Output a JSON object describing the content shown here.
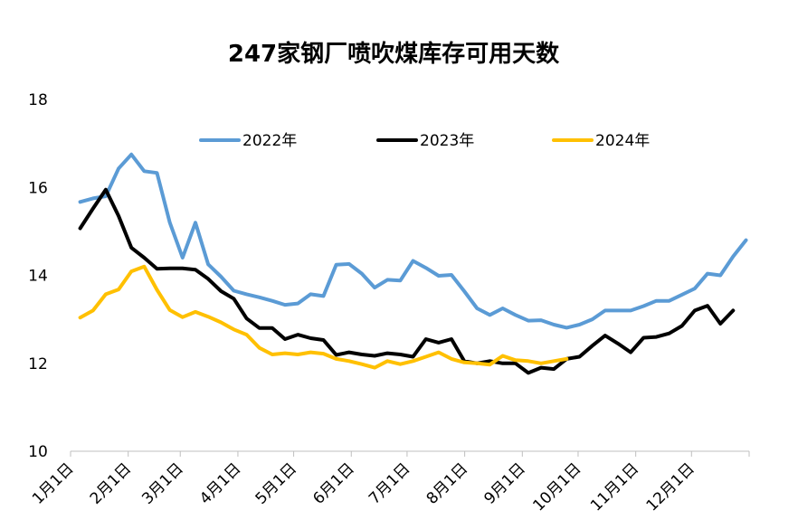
{
  "chart_data": {
    "type": "line",
    "title": "247家钢厂喷吹煤库存可用天数",
    "xlabel": "",
    "ylabel": "",
    "ylim": [
      10,
      18
    ],
    "yticks": [
      "10",
      "12",
      "14",
      "16",
      "18"
    ],
    "xticks": [
      "1月1日",
      "2月1日",
      "3月1日",
      "4月1日",
      "5月1日",
      "6月1日",
      "7月1日",
      "8月1日",
      "9月1日",
      "10月1日",
      "11月1日",
      "12月1日"
    ],
    "legend_position": "top",
    "grid": false,
    "series": [
      {
        "name": "2022年",
        "color": "#5B9BD5",
        "week_start": 1,
        "values": [
          15.67,
          15.75,
          15.8,
          16.43,
          16.75,
          16.37,
          16.33,
          15.2,
          14.4,
          15.2,
          14.25,
          13.97,
          13.65,
          13.57,
          13.5,
          13.42,
          13.33,
          13.36,
          13.57,
          13.53,
          14.24,
          14.26,
          14.04,
          13.72,
          13.9,
          13.88,
          14.33,
          14.17,
          13.99,
          14.01,
          13.64,
          13.25,
          13.1,
          13.25,
          13.1,
          12.97,
          12.98,
          12.88,
          12.81,
          12.88,
          13.0,
          13.2,
          13.2,
          13.2,
          13.3,
          13.42,
          13.42,
          13.56,
          13.7,
          14.04,
          14.0,
          14.43,
          14.8
        ]
      },
      {
        "name": "2023年",
        "color": "#000000",
        "week_start": 1,
        "values": [
          15.07,
          15.52,
          15.95,
          15.35,
          14.63,
          14.4,
          14.15,
          14.16,
          14.16,
          14.13,
          13.92,
          13.64,
          13.47,
          13.02,
          12.8,
          12.8,
          12.55,
          12.65,
          12.57,
          12.53,
          12.19,
          12.25,
          12.2,
          12.17,
          12.23,
          12.2,
          12.15,
          12.55,
          12.47,
          12.55,
          12.05,
          12.0,
          12.05,
          12.0,
          12.0,
          11.78,
          11.9,
          11.87,
          12.1,
          12.15,
          12.4,
          12.63,
          12.45,
          12.25,
          12.58,
          12.6,
          12.68,
          12.85,
          13.2,
          13.31,
          12.9,
          13.2
        ]
      },
      {
        "name": "2024年",
        "color": "#FFC000",
        "week_start": 1,
        "values": [
          13.04,
          13.2,
          13.57,
          13.68,
          14.09,
          14.2,
          13.67,
          13.21,
          13.05,
          13.17,
          13.06,
          12.93,
          12.77,
          12.65,
          12.35,
          12.2,
          12.23,
          12.2,
          12.25,
          12.22,
          12.1,
          12.05,
          11.98,
          11.9,
          12.05,
          11.98,
          12.05,
          12.15,
          12.25,
          12.1,
          12.02,
          12.0,
          11.97,
          12.17,
          12.07,
          12.05,
          12.0,
          12.05,
          12.1
        ]
      }
    ]
  }
}
